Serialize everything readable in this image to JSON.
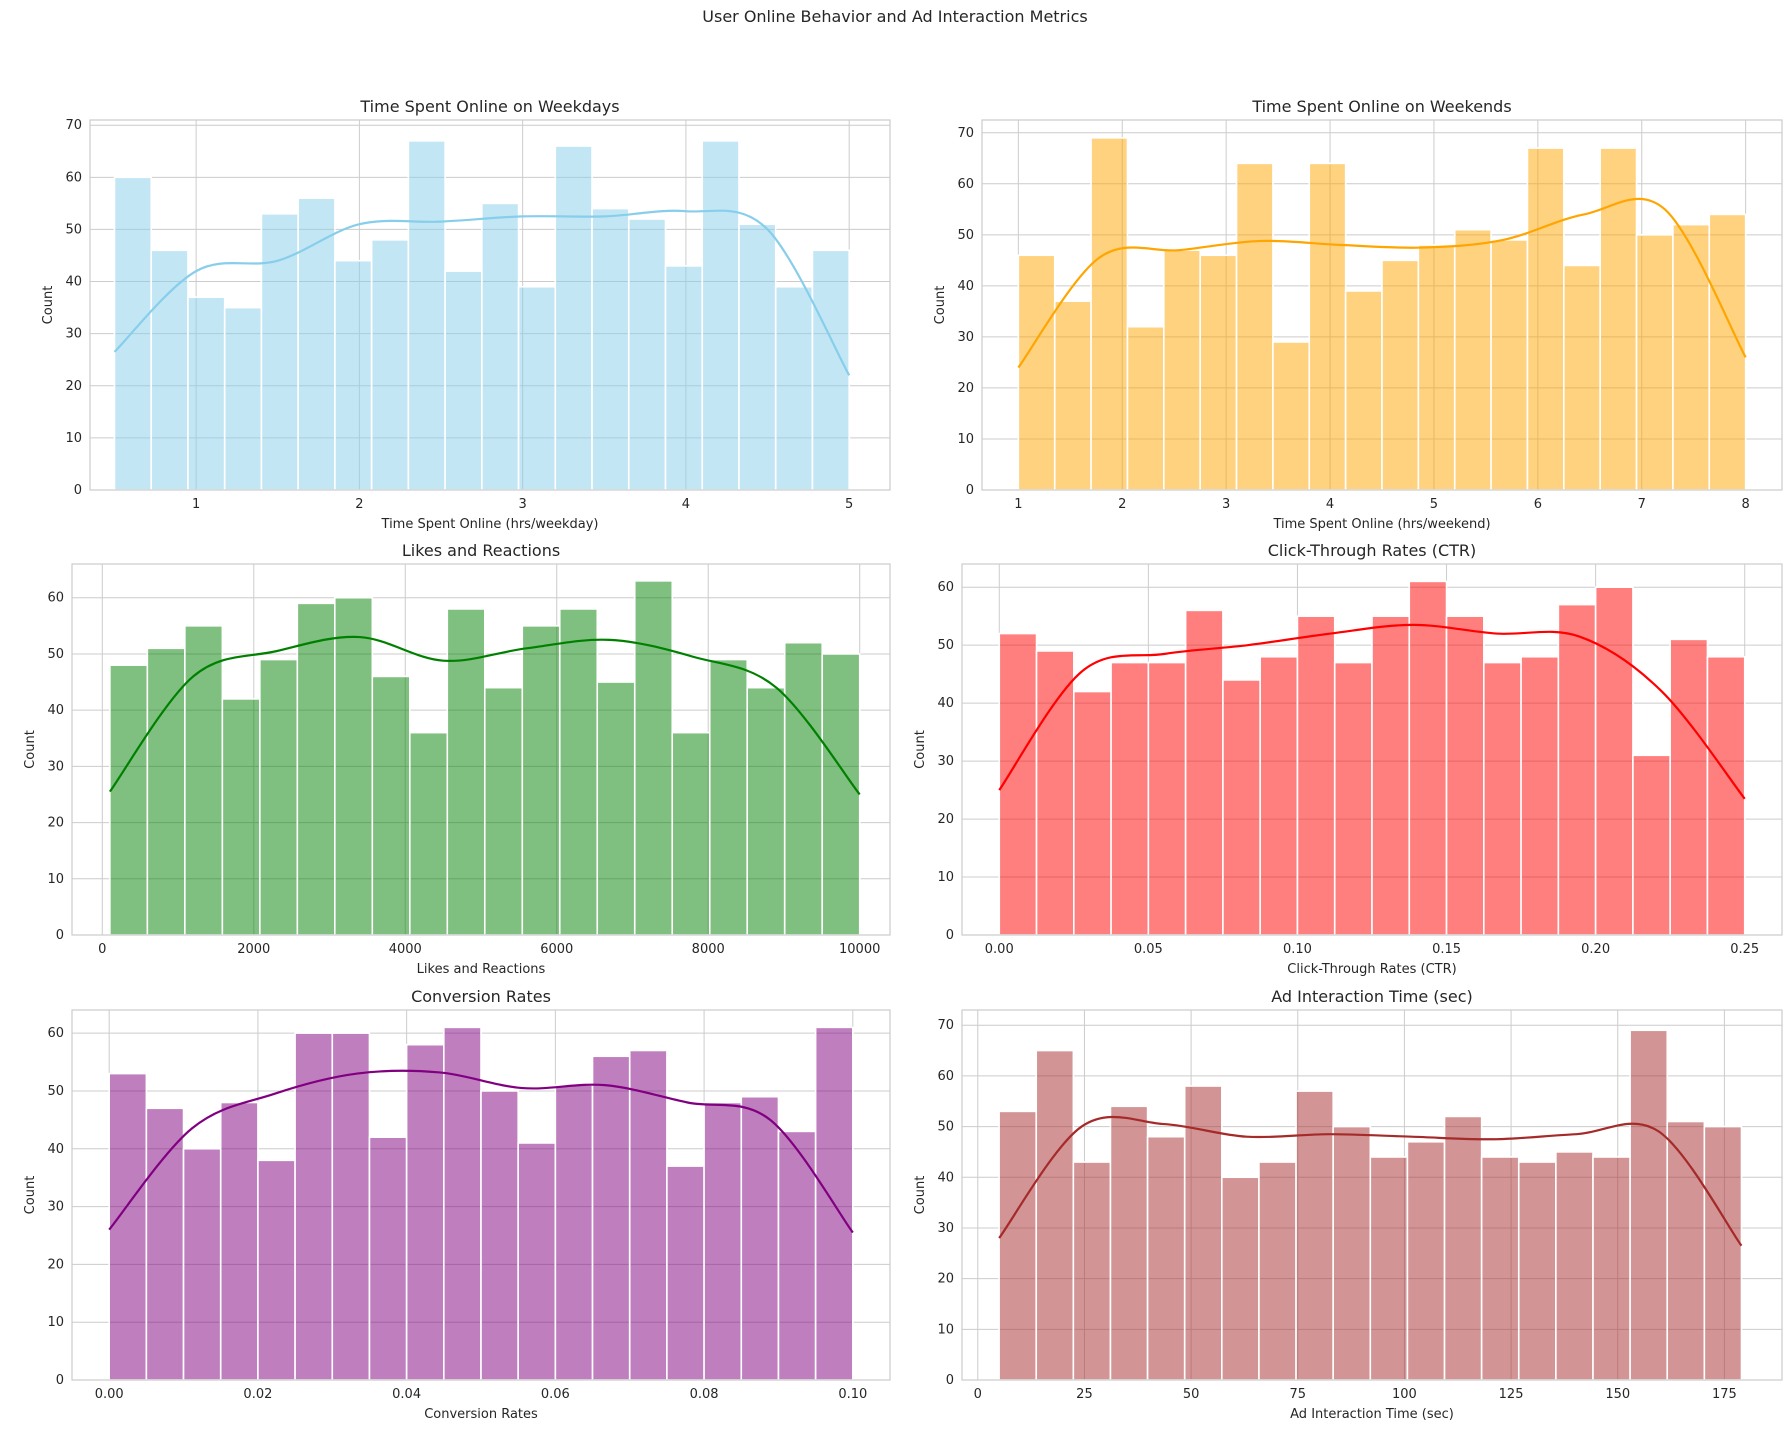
{
  "figure": {
    "suptitle": "User Online Behavior and Ad Interaction Metrics"
  },
  "chart_data": [
    {
      "id": "weekdays",
      "type": "bar",
      "title": "Time Spent Online on Weekdays",
      "xlabel": "Time Spent Online (hrs/weekday)",
      "ylabel": "Count",
      "color": "#87CEEB",
      "xlim": [
        0.35,
        5.25
      ],
      "ylim": [
        0,
        71
      ],
      "xticks": [
        1,
        2,
        3,
        4,
        5
      ],
      "xtick_labels": [
        "1",
        "2",
        "3",
        "4",
        "5"
      ],
      "yticks": [
        0,
        10,
        20,
        30,
        40,
        50,
        60,
        70
      ],
      "bin_start": 0.5,
      "bin_end": 5.0,
      "counts": [
        60,
        46,
        37,
        35,
        53,
        56,
        44,
        48,
        67,
        42,
        55,
        39,
        66,
        54,
        52,
        43,
        67,
        51,
        39,
        46
      ],
      "kde": [
        26.5,
        42,
        44,
        51,
        51.5,
        52.5,
        52.5,
        53.5,
        50,
        22
      ]
    },
    {
      "id": "weekends",
      "type": "bar",
      "title": "Time Spent Online on Weekends",
      "xlabel": "Time Spent Online (hrs/weekend)",
      "ylabel": "Count",
      "color": "#FFA500",
      "xlim": [
        0.65,
        8.35
      ],
      "ylim": [
        0,
        72.5
      ],
      "xticks": [
        1,
        2,
        3,
        4,
        5,
        6,
        7,
        8
      ],
      "xtick_labels": [
        "1",
        "2",
        "3",
        "4",
        "5",
        "6",
        "7",
        "8"
      ],
      "yticks": [
        0,
        10,
        20,
        30,
        40,
        50,
        60,
        70
      ],
      "bin_start": 1.0,
      "bin_end": 8.0,
      "counts": [
        46,
        37,
        69,
        32,
        47,
        46,
        64,
        29,
        64,
        39,
        45,
        48,
        51,
        49,
        67,
        44,
        67,
        50,
        52,
        54
      ],
      "kde": [
        24,
        45.5,
        47,
        48.8,
        48,
        47.5,
        49,
        54,
        55,
        26
      ]
    },
    {
      "id": "likes",
      "type": "bar",
      "title": "Likes and Reactions",
      "xlabel": "Likes and Reactions",
      "ylabel": "Count",
      "color": "#008000",
      "xlim": [
        -400,
        10400
      ],
      "ylim": [
        0,
        66
      ],
      "xticks": [
        0,
        2000,
        4000,
        6000,
        8000,
        10000
      ],
      "xtick_labels": [
        "0",
        "2000",
        "4000",
        "6000",
        "8000",
        "10000"
      ],
      "yticks": [
        0,
        10,
        20,
        30,
        40,
        50,
        60
      ],
      "bin_start": 100,
      "bin_end": 10000,
      "counts": [
        48,
        51,
        55,
        42,
        49,
        59,
        60,
        46,
        36,
        58,
        44,
        55,
        58,
        45,
        63,
        36,
        49,
        44,
        52,
        50
      ],
      "kde": [
        25.5,
        46,
        50.5,
        53,
        48.8,
        51,
        52.5,
        49.5,
        44,
        25
      ]
    },
    {
      "id": "ctr",
      "type": "bar",
      "title": "Click-Through Rates (CTR)",
      "xlabel": "Click-Through Rates (CTR)",
      "ylabel": "Count",
      "color": "#FF0000",
      "xlim": [
        -0.0125,
        0.2625
      ],
      "ylim": [
        0,
        64
      ],
      "xticks": [
        0,
        0.05,
        0.1,
        0.15,
        0.2,
        0.25
      ],
      "xtick_labels": [
        "0.00",
        "0.05",
        "0.10",
        "0.15",
        "0.20",
        "0.25"
      ],
      "yticks": [
        0,
        10,
        20,
        30,
        40,
        50,
        60
      ],
      "bin_start": 0.0,
      "bin_end": 0.25,
      "counts": [
        52,
        49,
        42,
        47,
        47,
        56,
        44,
        48,
        55,
        47,
        55,
        61,
        55,
        47,
        48,
        57,
        60,
        31,
        51,
        48
      ],
      "kde": [
        25,
        45.5,
        48.5,
        50,
        52,
        53.5,
        52,
        51.5,
        42,
        23.5
      ]
    },
    {
      "id": "conversion",
      "type": "bar",
      "title": "Conversion Rates",
      "xlabel": "Conversion Rates",
      "ylabel": "Count",
      "color": "#800080",
      "xlim": [
        -0.005,
        0.105
      ],
      "ylim": [
        0,
        64
      ],
      "xticks": [
        0,
        0.02,
        0.04,
        0.06,
        0.08,
        0.1
      ],
      "xtick_labels": [
        "0.00",
        "0.02",
        "0.04",
        "0.06",
        "0.08",
        "0.10"
      ],
      "yticks": [
        0,
        10,
        20,
        30,
        40,
        50,
        60
      ],
      "bin_start": 0.0,
      "bin_end": 0.1,
      "counts": [
        53,
        47,
        40,
        48,
        38,
        60,
        60,
        42,
        58,
        61,
        50,
        41,
        51,
        56,
        57,
        37,
        48,
        49,
        43,
        61
      ],
      "kde": [
        26,
        43.5,
        49.5,
        53,
        53.2,
        50.5,
        51,
        48,
        45,
        25.5
      ]
    },
    {
      "id": "ad_time",
      "type": "bar",
      "title": "Ad Interaction Time (sec)",
      "xlabel": "Ad Interaction Time (sec)",
      "ylabel": "Count",
      "color": "#A52A2A",
      "xlim": [
        -3.7,
        188.5
      ],
      "ylim": [
        0,
        73
      ],
      "xticks": [
        0,
        25,
        50,
        75,
        100,
        125,
        150,
        175
      ],
      "xtick_labels": [
        "0",
        "25",
        "50",
        "75",
        "100",
        "125",
        "150",
        "175"
      ],
      "yticks": [
        0,
        10,
        20,
        30,
        40,
        50,
        60,
        70
      ],
      "bin_start": 5,
      "bin_end": 179,
      "counts": [
        53,
        65,
        43,
        54,
        48,
        58,
        40,
        43,
        57,
        50,
        44,
        47,
        52,
        44,
        43,
        45,
        44,
        69,
        51,
        50
      ],
      "kde": [
        28,
        50,
        50.5,
        48,
        48.5,
        48,
        47.5,
        48.5,
        49,
        26.5
      ]
    }
  ]
}
